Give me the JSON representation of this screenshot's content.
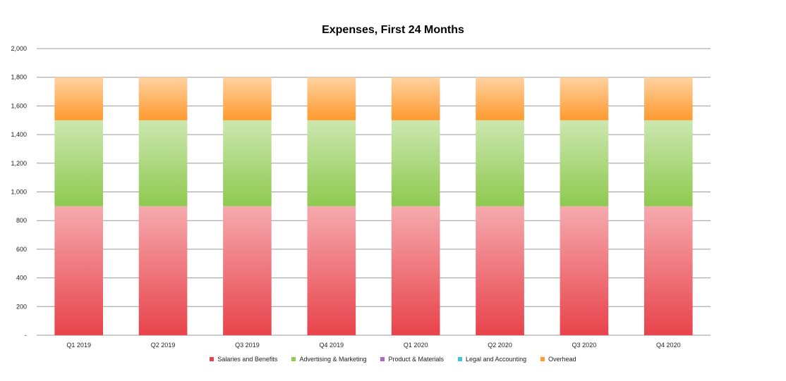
{
  "chart_data": {
    "type": "bar",
    "stacked": true,
    "title": "Expenses, First 24 Months",
    "categories": [
      "Q1 2019",
      "Q2 2019",
      "Q3 2019",
      "Q4 2019",
      "Q1 2020",
      "Q2 2020",
      "Q3 2020",
      "Q4 2020"
    ],
    "series": [
      {
        "name": "Salaries and Benefits",
        "color": "#e8434b",
        "values": [
          900,
          900,
          900,
          900,
          900,
          900,
          900,
          900
        ]
      },
      {
        "name": "Advertising & Marketing",
        "color": "#8ec94f",
        "values": [
          600,
          600,
          600,
          600,
          600,
          600,
          600,
          600
        ]
      },
      {
        "name": "Product & Materials",
        "color": "#a66bbe",
        "values": [
          0,
          0,
          0,
          0,
          0,
          0,
          0,
          0
        ]
      },
      {
        "name": "Legal and Accounting",
        "color": "#3cc3e0",
        "values": [
          0,
          0,
          0,
          0,
          0,
          0,
          0,
          0
        ]
      },
      {
        "name": "Overhead",
        "color": "#ff9a2e",
        "values": [
          300,
          300,
          300,
          300,
          300,
          300,
          300,
          300
        ]
      }
    ],
    "ylim": [
      0,
      2000
    ],
    "yticks": [
      0,
      200,
      400,
      600,
      800,
      1000,
      1200,
      1400,
      1600,
      1800,
      2000
    ],
    "ytick_labels": [
      "-",
      "200",
      "400",
      "600",
      "800",
      "1,000",
      "1,200",
      "1,400",
      "1,600",
      "1,800",
      "2,000"
    ],
    "xlabel": "",
    "ylabel": "",
    "grid": true,
    "legend_position": "bottom"
  }
}
